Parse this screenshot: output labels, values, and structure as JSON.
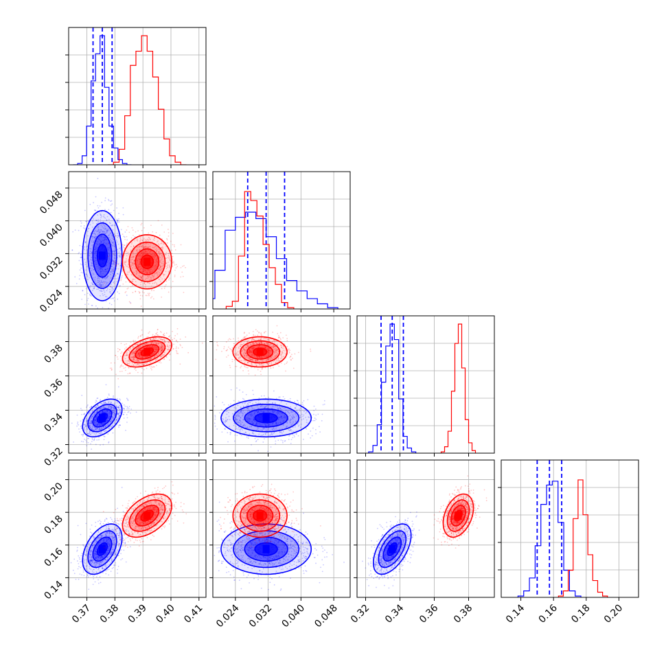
{
  "chart_data": {
    "type": "corner",
    "title": "",
    "grid": true,
    "series": [
      {
        "color": "#0000ff",
        "quantile_lines": true,
        "params": [
          {
            "mean": 0.3755,
            "sd": 0.0032,
            "quantiles": [
              0.3722,
              0.3755,
              0.379
            ]
          },
          {
            "mean": 0.0315,
            "sd": 0.005,
            "quantiles": [
              0.027,
              0.0315,
              0.036
            ]
          },
          {
            "mean": 0.3355,
            "sd": 0.005,
            "quantiles": [
              0.329,
              0.3355,
              0.342
            ]
          },
          {
            "mean": 0.1575,
            "sd": 0.007,
            "quantiles": [
              0.15,
              0.1575,
              0.165
            ]
          }
        ],
        "correlations": [
          [
            1,
            0.0,
            0.45,
            0.45
          ],
          [
            0.0,
            1,
            0.0,
            0.0
          ],
          [
            0.45,
            0.0,
            1,
            0.55
          ],
          [
            0.45,
            0.0,
            0.55,
            1
          ]
        ],
        "histograms": [
          [
            0.0,
            0.01,
            0.07,
            0.3,
            0.65,
            0.86,
            1.0,
            0.6,
            0.3,
            0.13,
            0.04,
            0.01,
            0.0
          ],
          [
            0.02,
            0.08,
            0.3,
            0.61,
            0.71,
            0.75,
            0.7,
            0.56,
            0.39,
            0.22,
            0.14,
            0.08,
            0.04,
            0.01
          ],
          [
            0.01,
            0.06,
            0.22,
            0.55,
            0.83,
            1.0,
            0.88,
            0.42,
            0.13,
            0.04,
            0.01
          ],
          [
            0.01,
            0.05,
            0.15,
            0.4,
            0.72,
            0.87,
            0.9,
            0.58,
            0.21,
            0.05,
            0.01
          ]
        ]
      },
      {
        "color": "#ff0000",
        "quantile_lines": false,
        "params": [
          {
            "mean": 0.3915,
            "sd": 0.004
          },
          {
            "mean": 0.03,
            "sd": 0.003
          },
          {
            "mean": 0.374,
            "sd": 0.004
          },
          {
            "mean": 0.178,
            "sd": 0.006
          }
        ],
        "correlations": [
          [
            1,
            0.0,
            0.45,
            0.45
          ],
          [
            0.0,
            1,
            0.0,
            0.0
          ],
          [
            0.45,
            0.0,
            1,
            0.35
          ],
          [
            0.45,
            0.0,
            0.35,
            1
          ]
        ],
        "histograms": [
          [
            0.0,
            0.02,
            0.12,
            0.38,
            0.77,
            0.88,
            1.0,
            0.88,
            0.68,
            0.43,
            0.2,
            0.07,
            0.02,
            0.0
          ],
          [
            0.02,
            0.06,
            0.41,
            0.91,
            0.84,
            0.72,
            0.5,
            0.32,
            0.19,
            0.05,
            0.01
          ],
          [
            0.01,
            0.05,
            0.17,
            0.48,
            0.85,
            1.0,
            0.66,
            0.26,
            0.08,
            0.02
          ],
          [
            0.01,
            0.05,
            0.21,
            0.61,
            0.91,
            0.64,
            0.33,
            0.13,
            0.04,
            0.01
          ]
        ]
      }
    ],
    "axes": [
      {
        "range": [
          0.3635,
          0.4125
        ],
        "ticks": [
          0.37,
          0.38,
          0.39,
          0.4,
          0.41
        ],
        "tick_labels": [
          "0.37",
          "0.38",
          "0.39",
          "0.40",
          "0.41"
        ]
      },
      {
        "range": [
          0.0185,
          0.052
        ],
        "ticks": [
          0.024,
          0.032,
          0.04,
          0.048
        ],
        "tick_labels": [
          "0.024",
          "0.032",
          "0.040",
          "0.048"
        ]
      },
      {
        "range": [
          0.315,
          0.395
        ],
        "ticks": [
          0.32,
          0.34,
          0.36,
          0.38
        ],
        "tick_labels": [
          "0.32",
          "0.34",
          "0.36",
          "0.38"
        ]
      },
      {
        "range": [
          0.128,
          0.212
        ],
        "ticks": [
          0.14,
          0.16,
          0.18,
          0.2
        ],
        "tick_labels": [
          "0.14",
          "0.16",
          "0.18",
          "0.20"
        ]
      }
    ]
  }
}
